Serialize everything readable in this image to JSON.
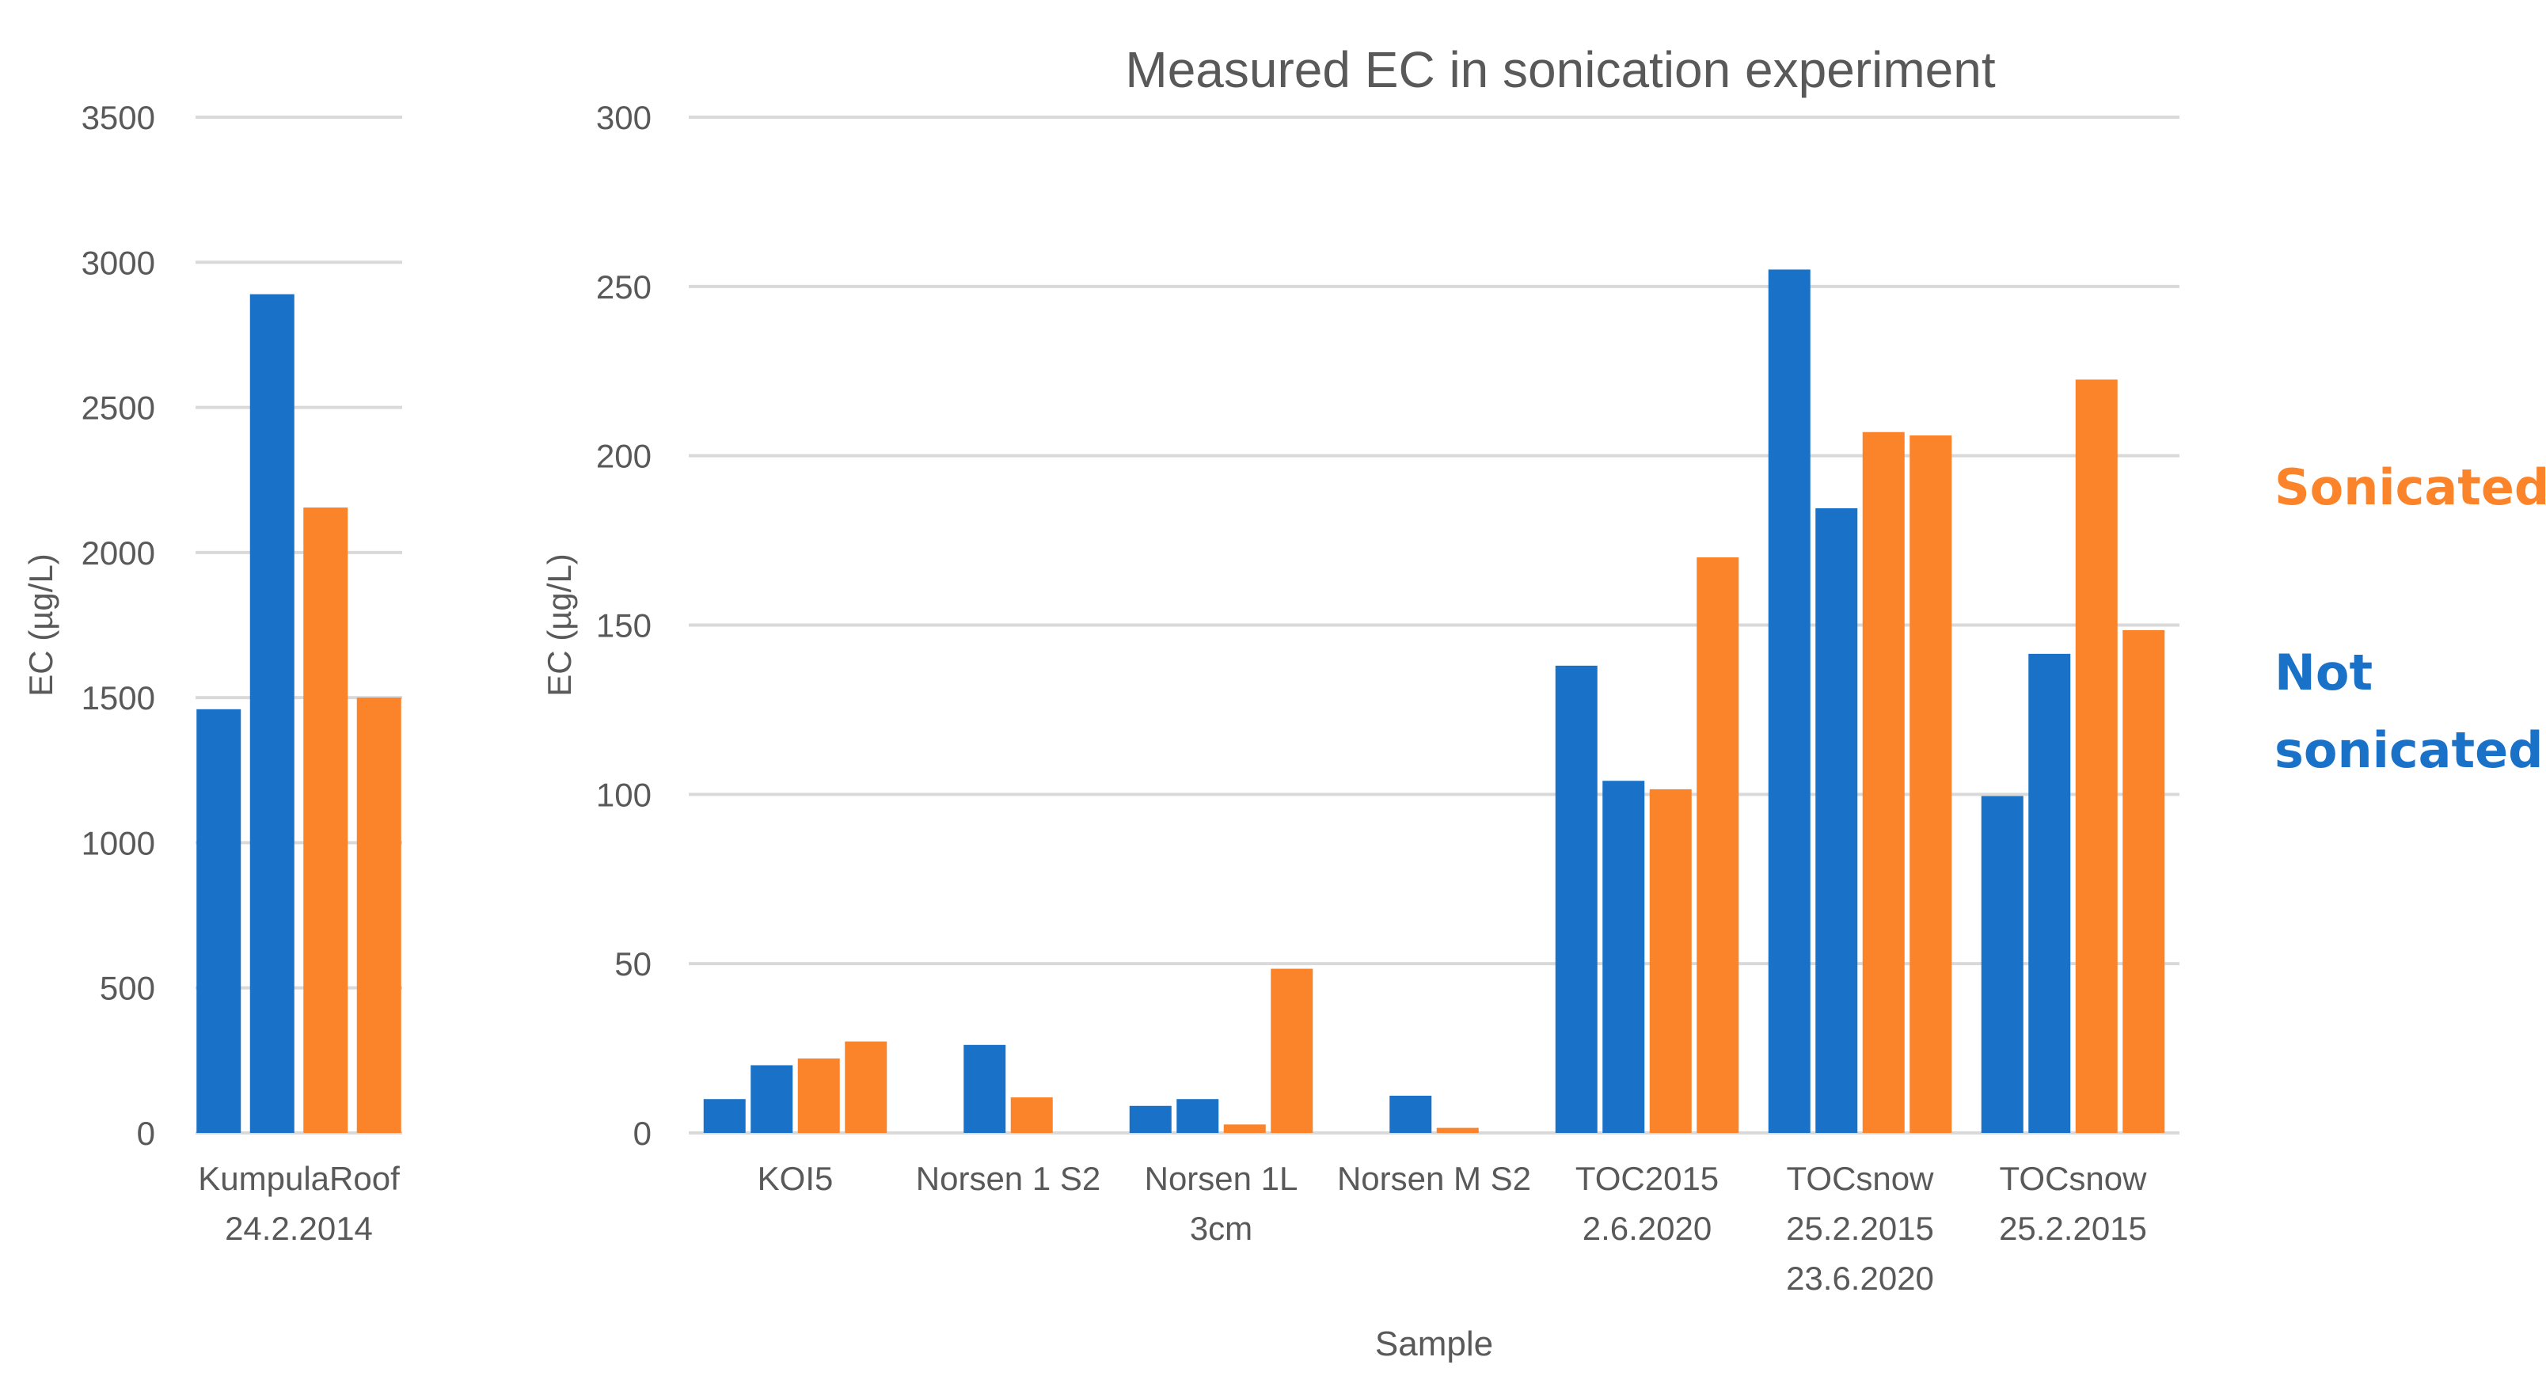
{
  "colors": {
    "not_sonicated": "#1a72c8",
    "sonicated": "#fb842b",
    "grid": "#d9d9d9",
    "axis_text": "#595959"
  },
  "legend": {
    "sonicated": "Sonicated",
    "not_sonicated": "Not sonicated"
  },
  "chart_data": [
    {
      "type": "bar",
      "title": "",
      "xlabel": "",
      "ylabel": "EC (µg/L)",
      "ylim": [
        0,
        3500
      ],
      "yticks": [
        0,
        500,
        1000,
        1500,
        2000,
        2500,
        3000,
        3500
      ],
      "categories": [
        [
          "KumpulaRoof",
          "24.2.2014"
        ]
      ],
      "groups": [
        {
          "bars": [
            {
              "value": 1460,
              "series": "not_sonicated"
            },
            {
              "value": 2890,
              "series": "not_sonicated"
            },
            {
              "value": 2155,
              "series": "sonicated"
            },
            {
              "value": 1500,
              "series": "sonicated"
            }
          ]
        }
      ]
    },
    {
      "type": "bar",
      "title": "Measured EC in sonication experiment",
      "xlabel": "Sample",
      "ylabel": "EC (µg/L)",
      "ylim": [
        0,
        300
      ],
      "yticks": [
        0,
        50,
        100,
        150,
        200,
        250,
        300
      ],
      "categories": [
        [
          "KOI5"
        ],
        [
          "Norsen 1 S2"
        ],
        [
          "Norsen 1L",
          "3cm"
        ],
        [
          "Norsen M S2"
        ],
        [
          "TOC2015",
          "2.6.2020"
        ],
        [
          "TOCsnow",
          "25.2.2015",
          "23.6.2020"
        ],
        [
          "TOCsnow",
          "25.2.2015"
        ]
      ],
      "groups": [
        {
          "bars": [
            {
              "value": 10,
              "series": "not_sonicated"
            },
            {
              "value": 20,
              "series": "not_sonicated"
            },
            {
              "value": 22,
              "series": "sonicated"
            },
            {
              "value": 27,
              "series": "sonicated"
            }
          ]
        },
        {
          "bars": [
            {
              "value": 26,
              "series": "not_sonicated"
            },
            {
              "value": 10.5,
              "series": "sonicated"
            }
          ]
        },
        {
          "bars": [
            {
              "value": 8,
              "series": "not_sonicated"
            },
            {
              "value": 10,
              "series": "not_sonicated"
            },
            {
              "value": 2.5,
              "series": "sonicated"
            },
            {
              "value": 48.5,
              "series": "sonicated"
            }
          ]
        },
        {
          "bars": [
            {
              "value": 11,
              "series": "not_sonicated"
            },
            {
              "value": 1.5,
              "series": "sonicated"
            }
          ]
        },
        {
          "bars": [
            {
              "value": 138,
              "series": "not_sonicated"
            },
            {
              "value": 104,
              "series": "not_sonicated"
            },
            {
              "value": 101.5,
              "series": "sonicated"
            },
            {
              "value": 170,
              "series": "sonicated"
            }
          ]
        },
        {
          "bars": [
            {
              "value": 255,
              "series": "not_sonicated"
            },
            {
              "value": 184.5,
              "series": "not_sonicated"
            },
            {
              "value": 207,
              "series": "sonicated"
            },
            {
              "value": 206,
              "series": "sonicated"
            }
          ]
        },
        {
          "bars": [
            {
              "value": 99.5,
              "series": "not_sonicated"
            },
            {
              "value": 141.5,
              "series": "not_sonicated"
            },
            {
              "value": 222.5,
              "series": "sonicated"
            },
            {
              "value": 148.5,
              "series": "sonicated"
            }
          ]
        }
      ]
    }
  ]
}
